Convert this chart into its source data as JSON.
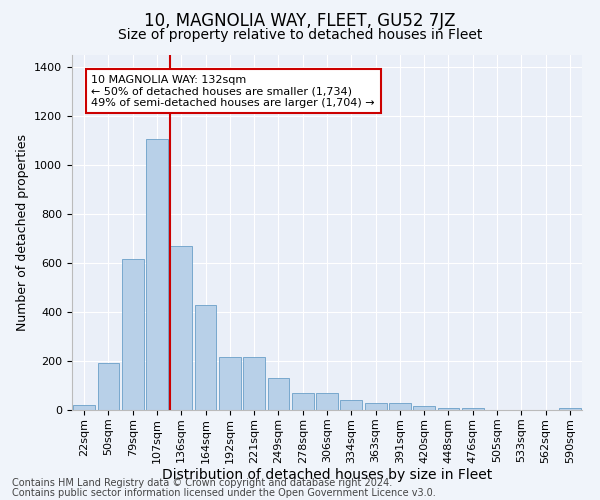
{
  "title": "10, MAGNOLIA WAY, FLEET, GU52 7JZ",
  "subtitle": "Size of property relative to detached houses in Fleet",
  "xlabel": "Distribution of detached houses by size in Fleet",
  "ylabel": "Number of detached properties",
  "categories": [
    "22sqm",
    "50sqm",
    "79sqm",
    "107sqm",
    "136sqm",
    "164sqm",
    "192sqm",
    "221sqm",
    "249sqm",
    "278sqm",
    "306sqm",
    "334sqm",
    "363sqm",
    "391sqm",
    "420sqm",
    "448sqm",
    "476sqm",
    "505sqm",
    "533sqm",
    "562sqm",
    "590sqm"
  ],
  "values": [
    20,
    190,
    615,
    1105,
    670,
    430,
    215,
    215,
    130,
    70,
    70,
    40,
    30,
    30,
    15,
    10,
    10,
    0,
    0,
    0,
    10
  ],
  "bar_color": "#b8d0e8",
  "bar_edge_color": "#6a9fc8",
  "highlight_index": 4,
  "red_line_color": "#cc0000",
  "ylim": [
    0,
    1450
  ],
  "yticks": [
    0,
    200,
    400,
    600,
    800,
    1000,
    1200,
    1400
  ],
  "annotation_text": "10 MAGNOLIA WAY: 132sqm\n← 50% of detached houses are smaller (1,734)\n49% of semi-detached houses are larger (1,704) →",
  "annotation_box_color": "#ffffff",
  "annotation_box_edge": "#cc0000",
  "footer_line1": "Contains HM Land Registry data © Crown copyright and database right 2024.",
  "footer_line2": "Contains public sector information licensed under the Open Government Licence v3.0.",
  "title_fontsize": 12,
  "subtitle_fontsize": 10,
  "xlabel_fontsize": 10,
  "ylabel_fontsize": 9,
  "tick_fontsize": 8,
  "annotation_fontsize": 8,
  "footer_fontsize": 7,
  "background_color": "#f0f4fa",
  "plot_background_color": "#eaeff8"
}
